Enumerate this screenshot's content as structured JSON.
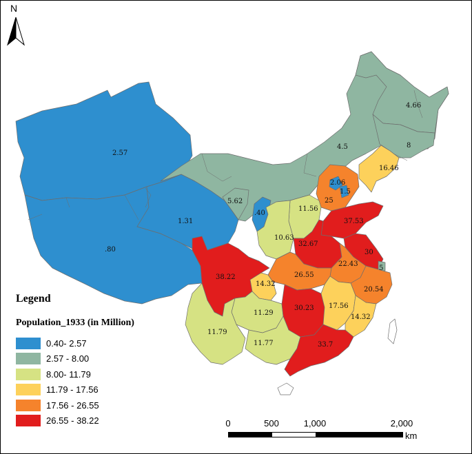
{
  "north_arrow": {
    "letter": "N"
  },
  "legend": {
    "title": "Legend",
    "subtitle": "Population_1933 (in Million)",
    "classes": [
      {
        "label": "0.40- 2.57",
        "color": "#2e8fcf"
      },
      {
        "label": "2.57 - 8.00",
        "color": "#8fb6a1"
      },
      {
        "label": "8.00- 11.79",
        "color": "#d6e283"
      },
      {
        "label": "11.79 - 17.56",
        "color": "#fdd15b"
      },
      {
        "label": "17.56 - 26.55",
        "color": "#f5832c"
      },
      {
        "label": "26.55 - 38.22",
        "color": "#e11d1d"
      }
    ]
  },
  "map_values": {
    "xinjiang": "2.57",
    "qinghai": "1.31",
    "tibet": ".80",
    "inner_mongolia": "4.5",
    "heilongjiang": "4.66",
    "jilin": "8",
    "liaoning": "16.46",
    "ningxia": "5.62",
    "gansu_strip": ".40",
    "shanxi": "11.56",
    "shaanxi": "10.63",
    "hebei": "25",
    "beijing": "2.06",
    "tianjin": "1.5",
    "shandong": "37.53",
    "henan": "32.67",
    "jiangsu": "30",
    "shanghai": "5",
    "anhui": "22.43",
    "hubei": "26.55",
    "zhejiang": "20.54",
    "sichuan": "38.22",
    "chongqing": "14.32",
    "guizhou": "11.29",
    "yunnan": "11.79",
    "hunan": "30.23",
    "jiangxi": "17.56",
    "fujian": "14.32",
    "guangxi": "11.77",
    "guangdong": "33.7"
  },
  "scale_bar": {
    "ticks": [
      "0",
      "500",
      "1,000",
      "2,000"
    ],
    "unit": "km"
  }
}
